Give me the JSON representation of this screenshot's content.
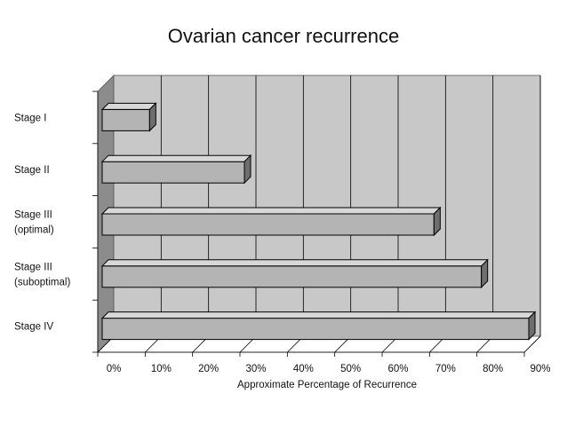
{
  "chart_data": {
    "type": "bar",
    "orientation": "horizontal",
    "style": "3d",
    "title": "Ovarian cancer recurrence",
    "xlabel": "Approximate Percentage of Recurrence",
    "ylabel": "",
    "categories": [
      [
        "Stage I"
      ],
      [
        "Stage II"
      ],
      [
        "Stage III",
        "(optimal)"
      ],
      [
        "Stage III",
        "(suboptimal)"
      ],
      [
        "Stage IV"
      ]
    ],
    "values": [
      10,
      30,
      70,
      80,
      90
    ],
    "xlim": [
      0,
      90
    ],
    "x_ticks": [
      "0%",
      "10%",
      "20%",
      "30%",
      "40%",
      "50%",
      "60%",
      "70%",
      "80%",
      "90%"
    ],
    "grid": true,
    "legend": "none",
    "colors": {
      "wall": "#c8c8c8",
      "side_wall": "#8c8c8c",
      "floor": "#ffffff",
      "bar_front": "#b4b4b4",
      "bar_top": "#d8d8d8",
      "bar_side": "#6e6e6e",
      "outline": "#000000"
    }
  }
}
